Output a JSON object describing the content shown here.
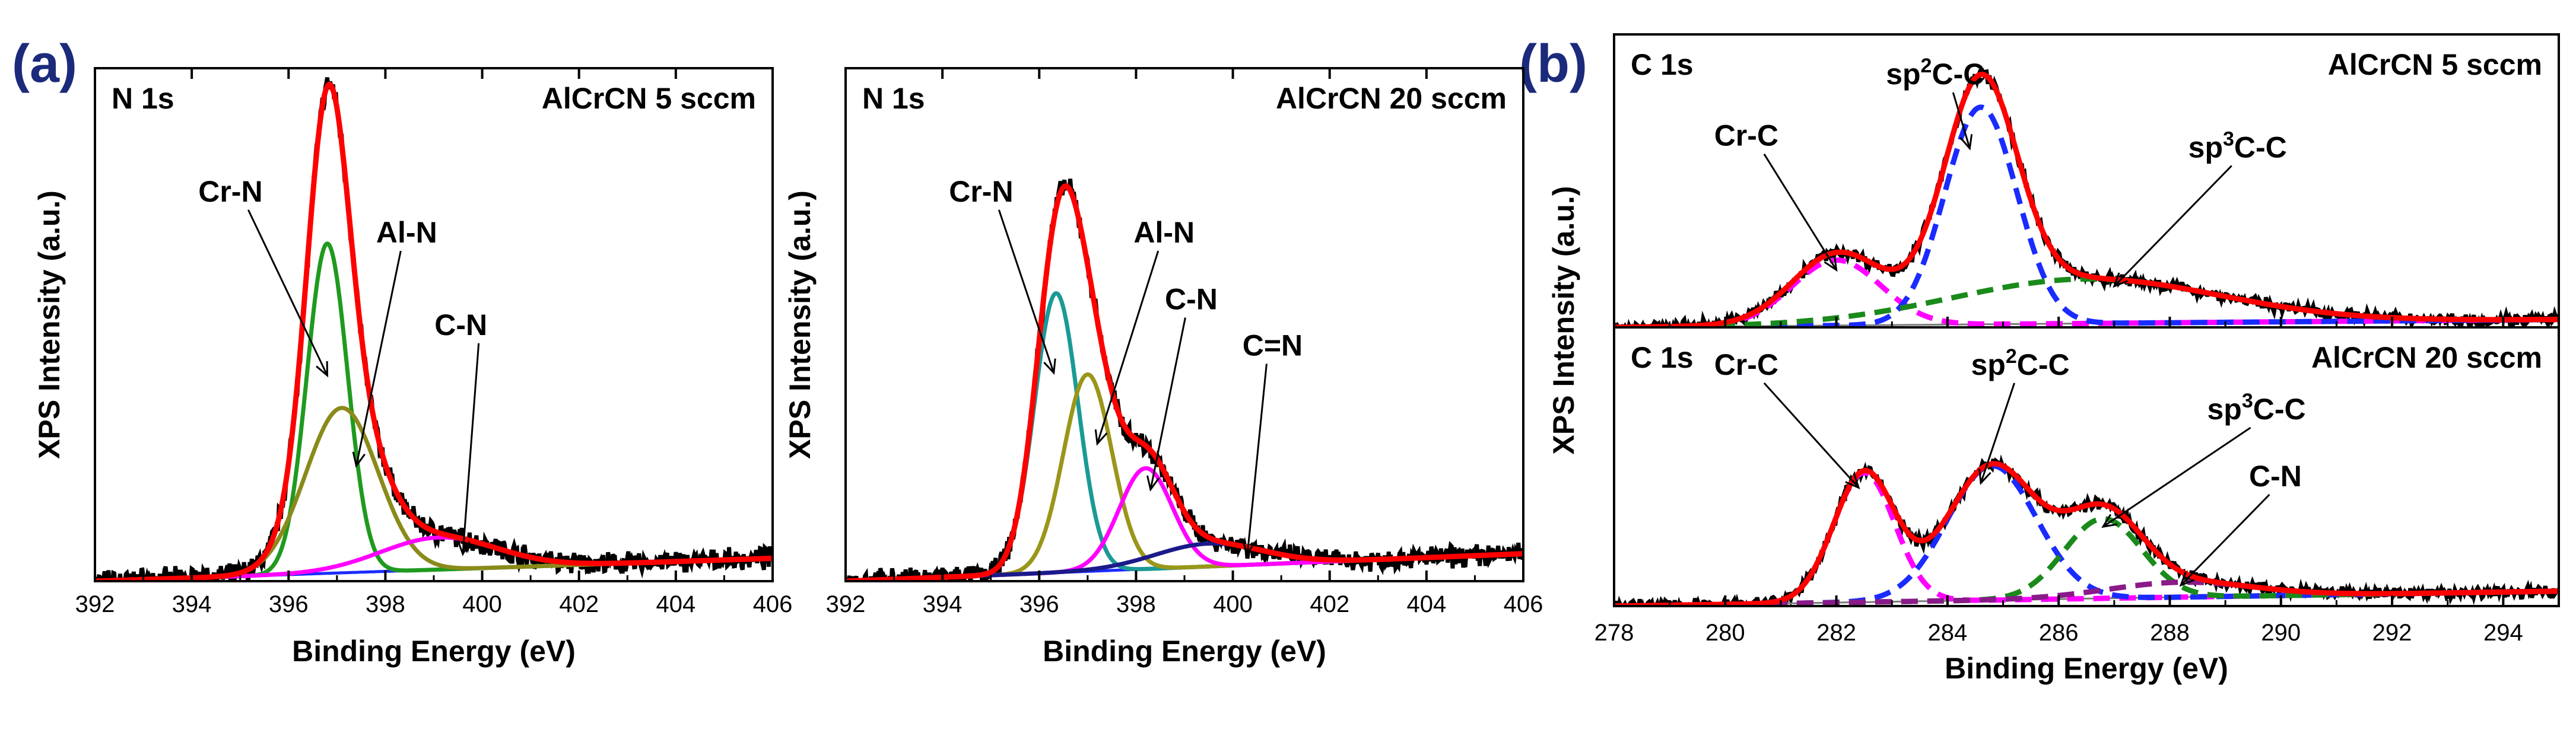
{
  "panel_labels": {
    "a": "(a)",
    "b": "(b)"
  },
  "chart_data": [
    {
      "id": "a1",
      "type": "line",
      "panel": "(a)",
      "corner_label": "N 1s",
      "sample_label": "AlCrCN 5 sccm",
      "xlabel": "Binding Energy (eV)",
      "ylabel": "XPS Intensity (a.u.)",
      "xlim": [
        392,
        406
      ],
      "xticks": [
        "392",
        "394",
        "396",
        "398",
        "400",
        "402",
        "404",
        "406"
      ],
      "ylim": [
        0,
        1.12
      ],
      "background": {
        "x": [
          392,
          406
        ],
        "y": [
          0.0,
          0.05
        ]
      },
      "components": [
        {
          "label": "Cr-N",
          "color": "#1f9a1f",
          "center": 396.8,
          "height": 0.72,
          "sigma": 0.42
        },
        {
          "label": "Al-N",
          "color": "#8a8a1a",
          "center": 397.1,
          "height": 0.36,
          "sigma": 0.75
        },
        {
          "label": "C-N",
          "color": "#ff00ff",
          "center": 399.1,
          "height": 0.07,
          "sigma": 1.2
        }
      ],
      "envelope_color": "#ff0000",
      "raw_color": "#000000",
      "background_color": "#1a2bff",
      "legend": "none",
      "grid": false
    },
    {
      "id": "a2",
      "type": "line",
      "panel": "(a)",
      "corner_label": "N 1s",
      "sample_label": "AlCrCN 20 sccm",
      "xlabel": "Binding Energy (eV)",
      "ylabel": "XPS Intensity (a.u.)",
      "xlim": [
        392,
        406
      ],
      "xticks": [
        "392",
        "394",
        "396",
        "398",
        "400",
        "402",
        "404",
        "406"
      ],
      "ylim": [
        0,
        1.12
      ],
      "background": {
        "x": [
          392,
          406
        ],
        "y": [
          0.0,
          0.06
        ]
      },
      "components": [
        {
          "label": "Cr-N",
          "color": "#1a9a96",
          "center": 396.35,
          "height": 0.61,
          "sigma": 0.45
        },
        {
          "label": "Al-N",
          "color": "#9a961a",
          "center": 397.0,
          "height": 0.43,
          "sigma": 0.5
        },
        {
          "label": "C-N",
          "color": "#ff00ff",
          "center": 398.2,
          "height": 0.22,
          "sigma": 0.55
        },
        {
          "label": "C=N",
          "color": "#1a1a8a",
          "center": 399.5,
          "height": 0.05,
          "sigma": 1.1
        }
      ],
      "envelope_color": "#ff0000",
      "raw_color": "#000000",
      "background_color": "#1a2bff",
      "legend": "none",
      "grid": false
    },
    {
      "id": "b1",
      "type": "line",
      "panel": "(b)",
      "corner_label": "C 1s",
      "sample_label": "AlCrCN 5 sccm",
      "ylabel": "XPS Intensity (a.u.)",
      "xlim": [
        278,
        295
      ],
      "ylim": [
        0,
        1.12
      ],
      "background": {
        "x": [
          278,
          295
        ],
        "y": [
          0.0,
          0.03
        ]
      },
      "components": [
        {
          "label": "Cr-C",
          "color": "#ff00ff",
          "center": 282.0,
          "height": 0.25,
          "sigma": 0.8,
          "dashed": true
        },
        {
          "label": "sp2C-C",
          "color": "#1a2bff",
          "center": 284.6,
          "height": 0.83,
          "sigma": 0.65,
          "dashed": true
        },
        {
          "label": "sp3C-C",
          "color": "#1a8a1a",
          "center": 286.5,
          "height": 0.17,
          "sigma": 2.4,
          "dashed": true
        }
      ],
      "envelope_color": "#ff0000",
      "raw_color": "#000000",
      "legend": "none",
      "grid": false
    },
    {
      "id": "b2",
      "type": "line",
      "panel": "(b)",
      "corner_label": "C 1s",
      "sample_label": "AlCrCN 20 sccm",
      "xlabel": "Binding Energy (eV)",
      "xlim": [
        278,
        295
      ],
      "xticks": [
        "278",
        "280",
        "282",
        "284",
        "286",
        "288",
        "290",
        "292",
        "294"
      ],
      "ylim": [
        0,
        1.12
      ],
      "background": {
        "x": [
          278,
          295
        ],
        "y": [
          0.0,
          0.06
        ]
      },
      "components": [
        {
          "label": "Cr-C",
          "color": "#ff00ff",
          "center": 282.5,
          "height": 0.52,
          "sigma": 0.55,
          "dashed": true
        },
        {
          "label": "sp2C-C",
          "color": "#1a2bff",
          "center": 284.8,
          "height": 0.54,
          "sigma": 0.8,
          "dashed": true
        },
        {
          "label": "sp3C-C",
          "color": "#1a8a1a",
          "center": 286.8,
          "height": 0.32,
          "sigma": 0.7,
          "dashed": true
        },
        {
          "label": "C-N",
          "color": "#8a1a8a",
          "center": 288.2,
          "height": 0.06,
          "sigma": 1.3,
          "dashed": true
        }
      ],
      "envelope_color": "#ff0000",
      "raw_color": "#000000",
      "legend": "none",
      "grid": false
    }
  ]
}
